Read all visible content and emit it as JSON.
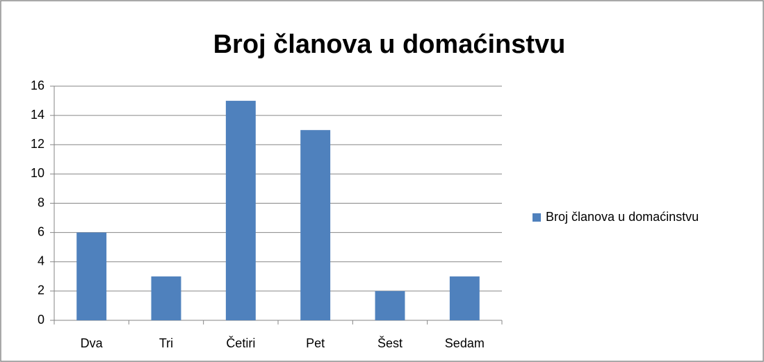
{
  "chart_data": {
    "type": "bar",
    "title": "Broj članova u domaćinstvu",
    "categories": [
      "Dva",
      "Tri",
      "Četiri",
      "Pet",
      "Šest",
      "Sedam"
    ],
    "series": [
      {
        "name": "Broj članova u domaćinstvu",
        "color": "#4f81bd",
        "values": [
          6,
          3,
          15,
          13,
          2,
          3
        ]
      }
    ],
    "ylim": [
      0,
      16
    ],
    "yticks": [
      0,
      2,
      4,
      6,
      8,
      10,
      12,
      14,
      16
    ],
    "grid": true,
    "legend": "right"
  }
}
